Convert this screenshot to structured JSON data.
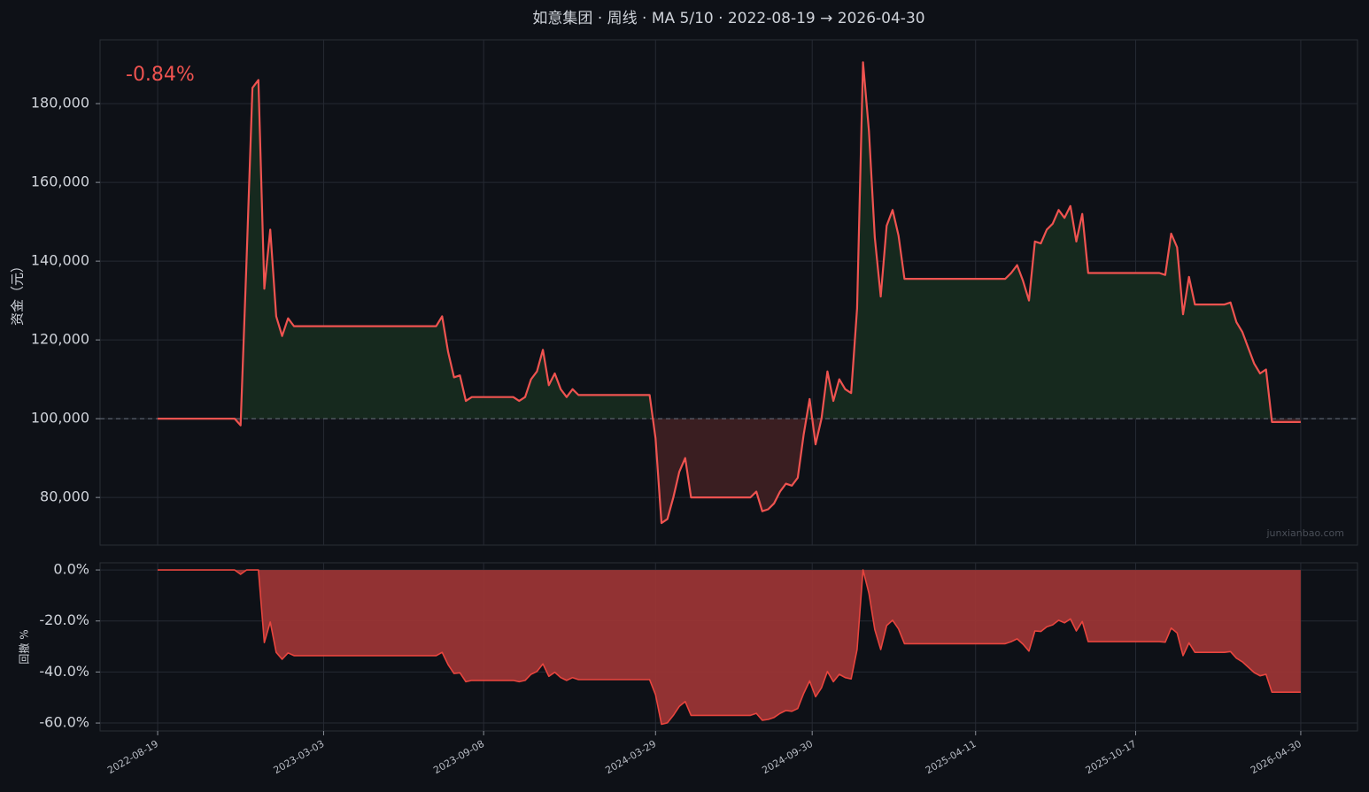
{
  "chart_data": [
    {
      "type": "line",
      "title": "如意集团 · 周线 · MA 5/10 · 2022-08-19 → 2026-04-30",
      "y_label": "资金（元）",
      "annotation": "-0.84%",
      "watermark": "junxianbao.com",
      "baseline": 100000,
      "color": "#ef5350",
      "fill_above": "#16291e",
      "fill_below": "#3a1e21",
      "grid": true,
      "xlim": [
        "2022-06-12",
        "2026-07-06"
      ],
      "xticks": [
        "2022-08-19",
        "2023-03-03",
        "2023-09-08",
        "2024-03-29",
        "2024-09-30",
        "2025-04-11",
        "2025-10-17",
        "2026-04-30"
      ],
      "ylim": [
        67900,
        196200
      ],
      "yticks": [
        {
          "value": 80000,
          "label": "80,000"
        },
        {
          "value": 100000,
          "label": "100,000"
        },
        {
          "value": 120000,
          "label": "120,000"
        },
        {
          "value": 140000,
          "label": "140,000"
        },
        {
          "value": 160000,
          "label": "160,000"
        },
        {
          "value": 180000,
          "label": "180,000"
        }
      ],
      "x": [
        "2022-08-19",
        "2022-11-18",
        "2022-11-25",
        "2022-12-02",
        "2022-12-09",
        "2022-12-16",
        "2022-12-23",
        "2022-12-30",
        "2023-01-06",
        "2023-01-13",
        "2023-01-20",
        "2023-01-27",
        "2023-07-14",
        "2023-07-21",
        "2023-07-28",
        "2023-08-04",
        "2023-08-11",
        "2023-08-18",
        "2023-08-25",
        "2023-10-13",
        "2023-10-20",
        "2023-10-27",
        "2023-11-03",
        "2023-11-10",
        "2023-11-17",
        "2023-11-24",
        "2023-12-01",
        "2023-12-08",
        "2023-12-15",
        "2023-12-22",
        "2023-12-29",
        "2024-03-22",
        "2024-03-29",
        "2024-04-05",
        "2024-04-12",
        "2024-04-19",
        "2024-04-26",
        "2024-05-03",
        "2024-05-10",
        "2024-07-19",
        "2024-07-26",
        "2024-08-02",
        "2024-08-09",
        "2024-08-16",
        "2024-08-23",
        "2024-08-30",
        "2024-09-06",
        "2024-09-13",
        "2024-09-20",
        "2024-09-27",
        "2024-10-04",
        "2024-10-11",
        "2024-10-18",
        "2024-10-25",
        "2024-11-01",
        "2024-11-08",
        "2024-11-15",
        "2024-11-22",
        "2024-11-29",
        "2024-12-06",
        "2024-12-13",
        "2024-12-20",
        "2024-12-27",
        "2025-01-03",
        "2025-01-10",
        "2025-01-17",
        "2025-05-16",
        "2025-05-23",
        "2025-05-30",
        "2025-06-06",
        "2025-06-13",
        "2025-06-20",
        "2025-06-27",
        "2025-07-04",
        "2025-07-11",
        "2025-07-18",
        "2025-07-25",
        "2025-08-01",
        "2025-08-08",
        "2025-08-15",
        "2025-08-22",
        "2025-11-14",
        "2025-11-21",
        "2025-11-28",
        "2025-12-05",
        "2025-12-12",
        "2025-12-19",
        "2025-12-26",
        "2026-01-30",
        "2026-02-06",
        "2026-02-13",
        "2026-02-20",
        "2026-02-27",
        "2026-03-06",
        "2026-03-13",
        "2026-03-20",
        "2026-03-27",
        "2026-04-30"
      ],
      "values": [
        100000,
        100000,
        98300,
        140000,
        184000,
        186000,
        133000,
        148000,
        126000,
        121000,
        125500,
        123500,
        123500,
        126000,
        117000,
        110500,
        111000,
        104500,
        105500,
        105500,
        104500,
        105500,
        110000,
        112000,
        117500,
        108500,
        111500,
        107500,
        105500,
        107500,
        106000,
        106000,
        95000,
        73500,
        74500,
        80000,
        86500,
        90000,
        80000,
        80000,
        81500,
        76500,
        77000,
        78500,
        81500,
        83500,
        83000,
        85000,
        96000,
        105000,
        93500,
        100000,
        112000,
        104500,
        110000,
        107500,
        106500,
        128000,
        190500,
        173000,
        146000,
        131000,
        149000,
        153000,
        146500,
        135500,
        135500,
        137000,
        139000,
        135000,
        130000,
        145000,
        144500,
        148000,
        149500,
        153000,
        151000,
        154000,
        145000,
        152000,
        137000,
        137000,
        136500,
        147000,
        143500,
        126500,
        136000,
        129000,
        129000,
        129500,
        124500,
        122000,
        118000,
        114000,
        111500,
        112500,
        99160,
        99160
      ]
    },
    {
      "type": "area",
      "y_label": "回撤 %",
      "color": "#e8453e",
      "fill": "#9a3535",
      "grid": true,
      "xlim": [
        "2022-06-12",
        "2026-07-06"
      ],
      "xticks": [
        "2022-08-19",
        "2023-03-03",
        "2023-09-08",
        "2024-03-29",
        "2024-09-30",
        "2025-04-11",
        "2025-10-17",
        "2026-04-30"
      ],
      "ylim": [
        -63.1,
        2.8
      ],
      "yticks": [
        {
          "value": -60,
          "label": "-60.0%"
        },
        {
          "value": -40,
          "label": "-40.0%"
        },
        {
          "value": -20,
          "label": "-20.0%"
        },
        {
          "value": 0,
          "label": "0.0%"
        }
      ],
      "x": [
        "2022-08-19",
        "2022-11-18",
        "2022-11-25",
        "2022-12-02",
        "2022-12-09",
        "2022-12-16",
        "2022-12-23",
        "2022-12-30",
        "2023-01-06",
        "2023-01-13",
        "2023-01-20",
        "2023-01-27",
        "2023-07-14",
        "2023-07-21",
        "2023-07-28",
        "2023-08-04",
        "2023-08-11",
        "2023-08-18",
        "2023-08-25",
        "2023-10-13",
        "2023-10-20",
        "2023-10-27",
        "2023-11-03",
        "2023-11-10",
        "2023-11-17",
        "2023-11-24",
        "2023-12-01",
        "2023-12-08",
        "2023-12-15",
        "2023-12-22",
        "2023-12-29",
        "2024-03-22",
        "2024-03-29",
        "2024-04-05",
        "2024-04-12",
        "2024-04-19",
        "2024-04-26",
        "2024-05-03",
        "2024-05-10",
        "2024-07-19",
        "2024-07-26",
        "2024-08-02",
        "2024-08-09",
        "2024-08-16",
        "2024-08-23",
        "2024-08-30",
        "2024-09-06",
        "2024-09-13",
        "2024-09-20",
        "2024-09-27",
        "2024-10-04",
        "2024-10-11",
        "2024-10-18",
        "2024-10-25",
        "2024-11-01",
        "2024-11-08",
        "2024-11-15",
        "2024-11-22",
        "2024-11-29",
        "2024-12-06",
        "2024-12-13",
        "2024-12-20",
        "2024-12-27",
        "2025-01-03",
        "2025-01-10",
        "2025-01-17",
        "2025-05-16",
        "2025-05-23",
        "2025-05-30",
        "2025-06-06",
        "2025-06-13",
        "2025-06-20",
        "2025-06-27",
        "2025-07-04",
        "2025-07-11",
        "2025-07-18",
        "2025-07-25",
        "2025-08-01",
        "2025-08-08",
        "2025-08-15",
        "2025-08-22",
        "2025-11-14",
        "2025-11-21",
        "2025-11-28",
        "2025-12-05",
        "2025-12-12",
        "2025-12-19",
        "2025-12-26",
        "2026-01-30",
        "2026-02-06",
        "2026-02-13",
        "2026-02-20",
        "2026-02-27",
        "2026-03-06",
        "2026-03-13",
        "2026-03-20",
        "2026-03-27",
        "2026-04-30"
      ],
      "values": [
        0,
        0,
        -1.7,
        0,
        0,
        0,
        -28.5,
        -20.4,
        -32.3,
        -35.0,
        -32.5,
        -33.6,
        -33.6,
        -32.3,
        -37.1,
        -40.6,
        -40.3,
        -43.8,
        -43.3,
        -43.3,
        -43.8,
        -43.3,
        -40.9,
        -39.8,
        -36.8,
        -41.7,
        -40.1,
        -42.2,
        -43.3,
        -42.2,
        -43.0,
        -43.0,
        -48.9,
        -60.5,
        -59.9,
        -57.0,
        -53.5,
        -51.6,
        -57.0,
        -57.0,
        -56.2,
        -58.9,
        -58.6,
        -57.8,
        -56.2,
        -55.1,
        -55.4,
        -54.3,
        -48.4,
        -43.5,
        -49.7,
        -46.2,
        -39.8,
        -43.8,
        -40.9,
        -42.2,
        -42.7,
        -31.2,
        0,
        -9.2,
        -23.4,
        -31.2,
        -21.8,
        -19.7,
        -23.1,
        -28.9,
        -28.9,
        -28.1,
        -27.0,
        -29.1,
        -31.8,
        -23.9,
        -24.1,
        -22.3,
        -21.5,
        -19.7,
        -20.7,
        -19.2,
        -23.9,
        -20.2,
        -28.1,
        -28.1,
        -28.3,
        -22.8,
        -24.7,
        -33.6,
        -28.6,
        -32.3,
        -32.3,
        -32.0,
        -34.6,
        -36.0,
        -38.1,
        -40.2,
        -41.5,
        -40.9,
        -47.9,
        -47.9
      ]
    }
  ]
}
